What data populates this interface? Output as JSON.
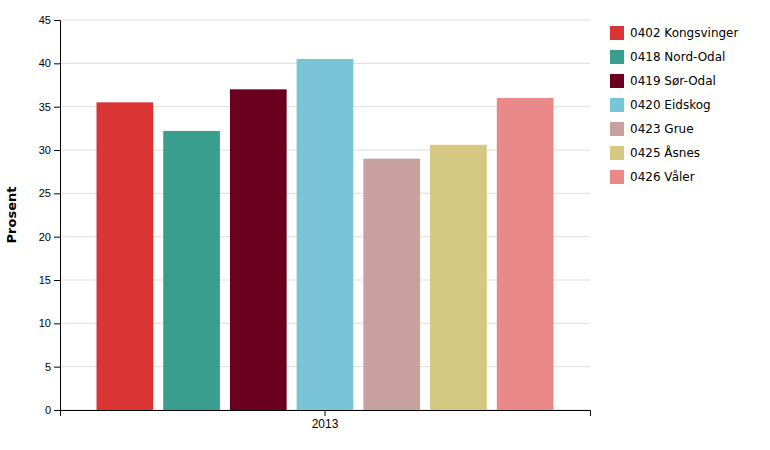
{
  "chart_data": {
    "type": "bar",
    "categories": [
      "2013"
    ],
    "series": [
      {
        "name": "0402 Kongsvinger",
        "color": "#d93535",
        "values": [
          35.5
        ]
      },
      {
        "name": "0418 Nord-Odal",
        "color": "#3a9e8e",
        "values": [
          32.2
        ]
      },
      {
        "name": "0419 Sør-Odal",
        "color": "#6b0020",
        "values": [
          37.0
        ]
      },
      {
        "name": "0420 Eidskog",
        "color": "#7ac4d8",
        "values": [
          40.5
        ]
      },
      {
        "name": "0423 Grue",
        "color": "#c8a0a0",
        "values": [
          29.0
        ]
      },
      {
        "name": "0425 Åsnes",
        "color": "#d4c882",
        "values": [
          30.6
        ]
      },
      {
        "name": "0426 Våler",
        "color": "#e88888",
        "values": [
          36.0
        ]
      }
    ],
    "ylabel": "Prosent",
    "ylim": [
      0,
      45
    ],
    "yticks": [
      0,
      5,
      10,
      15,
      20,
      25,
      30,
      35,
      40,
      45
    ],
    "grid": true,
    "legend": "right"
  }
}
